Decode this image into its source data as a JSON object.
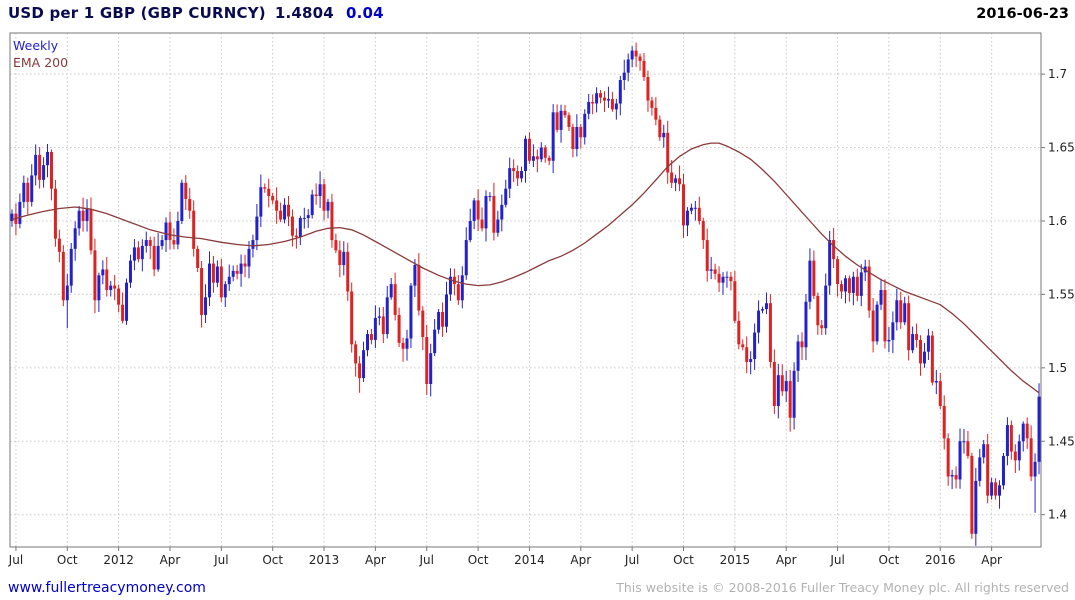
{
  "header": {
    "instrument": "USD per 1 GBP (GBP CURNCY)",
    "last_price": "1.4804",
    "change": "0.04",
    "date": "2016-06-23"
  },
  "legend": {
    "interval": "Weekly",
    "overlay": "EMA 200"
  },
  "footer": {
    "site_link": "www.fullertreacymoney.com",
    "copyright": "This website is © 2008-2016 Fuller Treacy Money plc. All rights reserved"
  },
  "colors": {
    "up_candle": "#2222cc",
    "down_candle": "#dd2222",
    "ema_line": "#8b3a3a",
    "grid": "#c9c9c9",
    "plot_border": "#777777",
    "axis_text": "#222222",
    "title_text": "#0a0a50",
    "change_text": "#0000cc",
    "link_text": "#0000cc",
    "copyright_text": "#b2b2b2"
  },
  "chart_data": {
    "type": "candlestick",
    "title": "USD per 1 GBP (GBP CURNCY)",
    "interval": "Weekly",
    "overlay": "EMA 200",
    "last": 1.4804,
    "change": 0.04,
    "as_of": "2016-06-23",
    "grid": "dotted",
    "legend_position": "top-left",
    "y_axis_side": "right",
    "ylim": [
      1.378,
      1.728
    ],
    "y_ticks": [
      {
        "v": 1.7,
        "label": "1.7"
      },
      {
        "v": 1.65,
        "label": "1.65"
      },
      {
        "v": 1.6,
        "label": "1.6"
      },
      {
        "v": 1.55,
        "label": "1.55"
      },
      {
        "v": 1.5,
        "label": "1.5"
      },
      {
        "v": 1.45,
        "label": "1.45"
      },
      {
        "v": 1.4,
        "label": "1.4"
      }
    ],
    "x_ticks": [
      {
        "i": 1,
        "label": "Jul"
      },
      {
        "i": 14,
        "label": "Oct"
      },
      {
        "i": 27,
        "label": "2012"
      },
      {
        "i": 40,
        "label": "Apr"
      },
      {
        "i": 53,
        "label": "Jul"
      },
      {
        "i": 66,
        "label": "Oct"
      },
      {
        "i": 79,
        "label": "2013"
      },
      {
        "i": 92,
        "label": "Apr"
      },
      {
        "i": 105,
        "label": "Jul"
      },
      {
        "i": 118,
        "label": "Oct"
      },
      {
        "i": 131,
        "label": "2014"
      },
      {
        "i": 144,
        "label": "Apr"
      },
      {
        "i": 157,
        "label": "Jul"
      },
      {
        "i": 170,
        "label": "Oct"
      },
      {
        "i": 183,
        "label": "2015"
      },
      {
        "i": 196,
        "label": "Apr"
      },
      {
        "i": 209,
        "label": "Jul"
      },
      {
        "i": 222,
        "label": "Oct"
      },
      {
        "i": 235,
        "label": "2016"
      },
      {
        "i": 248,
        "label": "Apr"
      }
    ],
    "first_open": 1.6,
    "weekly_closes": [
      1.605,
      1.598,
      1.613,
      1.626,
      1.613,
      1.631,
      1.645,
      1.628,
      1.638,
      1.647,
      1.622,
      1.588,
      1.579,
      1.546,
      1.556,
      1.581,
      1.595,
      1.607,
      1.6,
      1.608,
      1.58,
      1.546,
      1.563,
      1.567,
      1.553,
      1.556,
      1.554,
      1.543,
      1.532,
      1.558,
      1.573,
      1.582,
      1.574,
      1.583,
      1.587,
      1.583,
      1.567,
      1.583,
      1.587,
      1.599,
      1.587,
      1.584,
      1.6,
      1.626,
      1.615,
      1.607,
      1.581,
      1.568,
      1.536,
      1.548,
      1.571,
      1.558,
      1.569,
      1.548,
      1.557,
      1.562,
      1.566,
      1.564,
      1.571,
      1.569,
      1.581,
      1.587,
      1.603,
      1.623,
      1.622,
      1.617,
      1.614,
      1.607,
      1.601,
      1.611,
      1.603,
      1.59,
      1.589,
      1.602,
      1.602,
      1.604,
      1.618,
      1.617,
      1.625,
      1.607,
      1.613,
      1.587,
      1.58,
      1.57,
      1.579,
      1.552,
      1.516,
      1.503,
      1.493,
      1.512,
      1.523,
      1.519,
      1.534,
      1.535,
      1.523,
      1.548,
      1.557,
      1.536,
      1.517,
      1.513,
      1.52,
      1.556,
      1.57,
      1.539,
      1.521,
      1.489,
      1.51,
      1.526,
      1.538,
      1.528,
      1.55,
      1.562,
      1.557,
      1.546,
      1.563,
      1.587,
      1.6,
      1.614,
      1.601,
      1.595,
      1.617,
      1.617,
      1.592,
      1.601,
      1.611,
      1.622,
      1.636,
      1.634,
      1.629,
      1.634,
      1.656,
      1.641,
      1.644,
      1.642,
      1.65,
      1.643,
      1.641,
      1.674,
      1.662,
      1.675,
      1.672,
      1.664,
      1.649,
      1.664,
      1.657,
      1.673,
      1.681,
      1.68,
      1.687,
      1.684,
      1.682,
      1.683,
      1.676,
      1.68,
      1.696,
      1.701,
      1.71,
      1.716,
      1.712,
      1.709,
      1.698,
      1.682,
      1.677,
      1.669,
      1.657,
      1.66,
      1.633,
      1.626,
      1.629,
      1.625,
      1.597,
      1.607,
      1.609,
      1.609,
      1.6,
      1.587,
      1.566,
      1.567,
      1.564,
      1.558,
      1.562,
      1.562,
      1.559,
      1.532,
      1.516,
      1.514,
      1.504,
      1.506,
      1.524,
      1.539,
      1.54,
      1.544,
      1.504,
      1.474,
      1.495,
      1.484,
      1.491,
      1.466,
      1.498,
      1.518,
      1.514,
      1.545,
      1.573,
      1.549,
      1.529,
      1.527,
      1.556,
      1.587,
      1.574,
      1.557,
      1.552,
      1.561,
      1.551,
      1.562,
      1.549,
      1.565,
      1.569,
      1.539,
      1.518,
      1.543,
      1.553,
      1.518,
      1.519,
      1.531,
      1.546,
      1.531,
      1.544,
      1.512,
      1.523,
      1.519,
      1.503,
      1.511,
      1.522,
      1.49,
      1.491,
      1.474,
      1.452,
      1.426,
      1.427,
      1.424,
      1.45,
      1.45,
      1.44,
      1.387,
      1.423,
      1.439,
      1.448,
      1.413,
      1.422,
      1.413,
      1.42,
      1.44,
      1.461,
      1.443,
      1.437,
      1.45,
      1.462,
      1.452,
      1.426,
      1.436,
      1.4804
    ],
    "wick_overrides": {
      "14": {
        "low": 1.527
      },
      "88": {
        "low": 1.483
      },
      "105": {
        "low": 1.4815
      },
      "157": {
        "high": 1.719
      },
      "197": {
        "low": 1.4565
      },
      "243": {
        "low": 1.3836
      },
      "259": {
        "low": 1.4013
      },
      "260": {
        "high": 1.4895
      }
    },
    "ema200_anchors": [
      [
        0,
        1.601
      ],
      [
        4,
        1.604
      ],
      [
        8,
        1.6065
      ],
      [
        12,
        1.6085
      ],
      [
        16,
        1.6095
      ],
      [
        20,
        1.608
      ],
      [
        24,
        1.605
      ],
      [
        27,
        1.602
      ],
      [
        31,
        1.598
      ],
      [
        35,
        1.594
      ],
      [
        40,
        1.5905
      ],
      [
        44,
        1.589
      ],
      [
        48,
        1.588
      ],
      [
        53,
        1.5855
      ],
      [
        57,
        1.584
      ],
      [
        61,
        1.583
      ],
      [
        65,
        1.584
      ],
      [
        69,
        1.586
      ],
      [
        73,
        1.589
      ],
      [
        77,
        1.593
      ],
      [
        80,
        1.595
      ],
      [
        83,
        1.5955
      ],
      [
        86,
        1.594
      ],
      [
        89,
        1.5905
      ],
      [
        92,
        1.586
      ],
      [
        96,
        1.58
      ],
      [
        100,
        1.574
      ],
      [
        104,
        1.568
      ],
      [
        108,
        1.563
      ],
      [
        112,
        1.559
      ],
      [
        115,
        1.557
      ],
      [
        118,
        1.556
      ],
      [
        121,
        1.5565
      ],
      [
        124,
        1.5585
      ],
      [
        127,
        1.5615
      ],
      [
        130,
        1.565
      ],
      [
        133,
        1.569
      ],
      [
        136,
        1.573
      ],
      [
        139,
        1.576
      ],
      [
        142,
        1.58
      ],
      [
        145,
        1.585
      ],
      [
        148,
        1.591
      ],
      [
        151,
        1.597
      ],
      [
        154,
        1.604
      ],
      [
        157,
        1.611
      ],
      [
        160,
        1.619
      ],
      [
        163,
        1.628
      ],
      [
        166,
        1.637
      ],
      [
        169,
        1.644
      ],
      [
        172,
        1.649
      ],
      [
        175,
        1.652
      ],
      [
        177,
        1.653
      ],
      [
        179,
        1.653
      ],
      [
        181,
        1.651
      ],
      [
        184,
        1.647
      ],
      [
        187,
        1.642
      ],
      [
        190,
        1.635
      ],
      [
        193,
        1.627
      ],
      [
        196,
        1.618
      ],
      [
        199,
        1.609
      ],
      [
        202,
        1.6
      ],
      [
        205,
        1.591
      ],
      [
        208,
        1.583
      ],
      [
        211,
        1.576
      ],
      [
        214,
        1.57
      ],
      [
        217,
        1.565
      ],
      [
        220,
        1.56
      ],
      [
        223,
        1.556
      ],
      [
        226,
        1.552
      ],
      [
        229,
        1.549
      ],
      [
        232,
        1.546
      ],
      [
        235,
        1.543
      ],
      [
        238,
        1.537
      ],
      [
        241,
        1.53
      ],
      [
        244,
        1.522
      ],
      [
        247,
        1.514
      ],
      [
        250,
        1.506
      ],
      [
        253,
        1.498
      ],
      [
        256,
        1.491
      ],
      [
        258,
        1.487
      ],
      [
        260,
        1.483
      ]
    ]
  }
}
